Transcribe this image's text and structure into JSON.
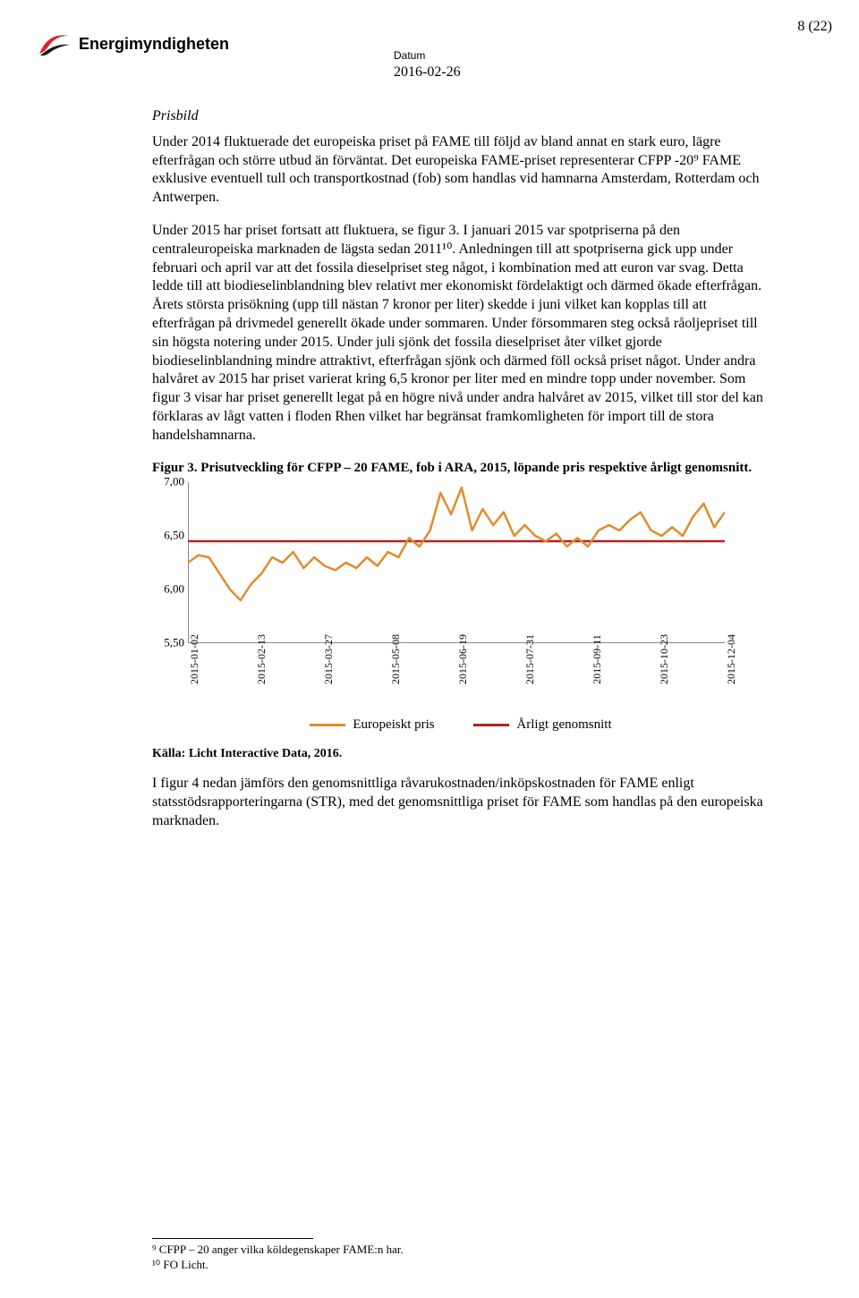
{
  "page_number": "8 (22)",
  "header": {
    "logo_text": "Energimyndigheten",
    "datum_label": "Datum",
    "datum_value": "2016-02-26"
  },
  "section": {
    "heading": "Prisbild",
    "para1": "Under 2014 fluktuerade det europeiska priset på FAME till följd av bland annat en stark euro, lägre efterfrågan och större utbud än förväntat. Det europeiska FAME-priset representerar CFPP -20⁹ FAME exklusive eventuell tull och transportkostnad (fob) som handlas vid hamnarna Amsterdam, Rotterdam och Antwerpen.",
    "para2": "Under 2015 har priset fortsatt att fluktuera, se figur 3. I januari 2015 var spotpriserna på den centraleuropeiska marknaden de lägsta sedan 2011¹⁰. Anledningen till att spotpriserna gick upp under februari och april var att det fossila dieselpriset steg något, i kombination med att euron var svag. Detta ledde till att biodieselinblandning blev relativt mer ekonomiskt fördelaktigt och därmed ökade efterfrågan. Årets största prisökning (upp till nästan 7 kronor per liter) skedde i juni vilket kan kopplas till att efterfrågan på drivmedel generellt ökade under sommaren. Under försommaren steg också råoljepriset till sin högsta notering under 2015. Under juli sjönk det fossila dieselpriset åter vilket gjorde biodieselinblandning mindre attraktivt, efterfrågan sjönk och därmed föll också priset något. Under andra halvåret av 2015 har priset varierat kring 6,5 kronor per liter med en mindre topp under november. Som figur 3 visar har priset generellt legat på en högre nivå under andra halvåret av 2015, vilket till stor del kan förklaras av lågt vatten i floden Rhen vilket har begränsat framkomligheten för import till de stora handelshamnarna."
  },
  "figure": {
    "title": "Figur 3. Prisutveckling för CFPP – 20 FAME, fob i ARA, 2015, löpande pris respektive årligt genomsnitt.",
    "chart": {
      "type": "line",
      "ylim": [
        5.5,
        7.0
      ],
      "ytick_step": 0.5,
      "yticks": [
        "7,00",
        "6,50",
        "6,00",
        "5,50"
      ],
      "xticks": [
        "2015-01-02",
        "2015-02-13",
        "2015-03-27",
        "2015-05-08",
        "2015-06-19",
        "2015-07-31",
        "2015-09-11",
        "2015-10-23",
        "2015-12-04"
      ],
      "annual_avg": 6.45,
      "avg_color": "#b22222",
      "line_color": "#e08b2c",
      "line_width": 2.5,
      "background_color": "#ffffff",
      "axis_color": "#888888",
      "series_values": [
        6.25,
        6.32,
        6.3,
        6.15,
        6.0,
        5.9,
        6.05,
        6.15,
        6.3,
        6.25,
        6.35,
        6.2,
        6.3,
        6.22,
        6.18,
        6.25,
        6.2,
        6.3,
        6.22,
        6.35,
        6.3,
        6.48,
        6.4,
        6.55,
        6.9,
        6.7,
        6.95,
        6.55,
        6.75,
        6.6,
        6.72,
        6.5,
        6.6,
        6.5,
        6.45,
        6.52,
        6.4,
        6.48,
        6.4,
        6.55,
        6.6,
        6.55,
        6.65,
        6.72,
        6.55,
        6.5,
        6.58,
        6.5,
        6.68,
        6.8,
        6.58,
        6.72
      ]
    },
    "legend": {
      "item1": "Europeiskt pris",
      "item2": "Årligt genomsnitt"
    },
    "source": "Källa: Licht Interactive Data, 2016."
  },
  "closing_para": "I figur 4 nedan jämförs den genomsnittliga råvarukostnaden/inköpskostnaden för FAME enligt statsstödsrapporteringarna (STR), med det genomsnittliga priset för FAME som handlas på den europeiska marknaden.",
  "footnotes": {
    "fn9": "⁹ CFPP – 20 anger vilka köldegenskaper FAME:n har.",
    "fn10": "¹⁰ FO Licht."
  }
}
